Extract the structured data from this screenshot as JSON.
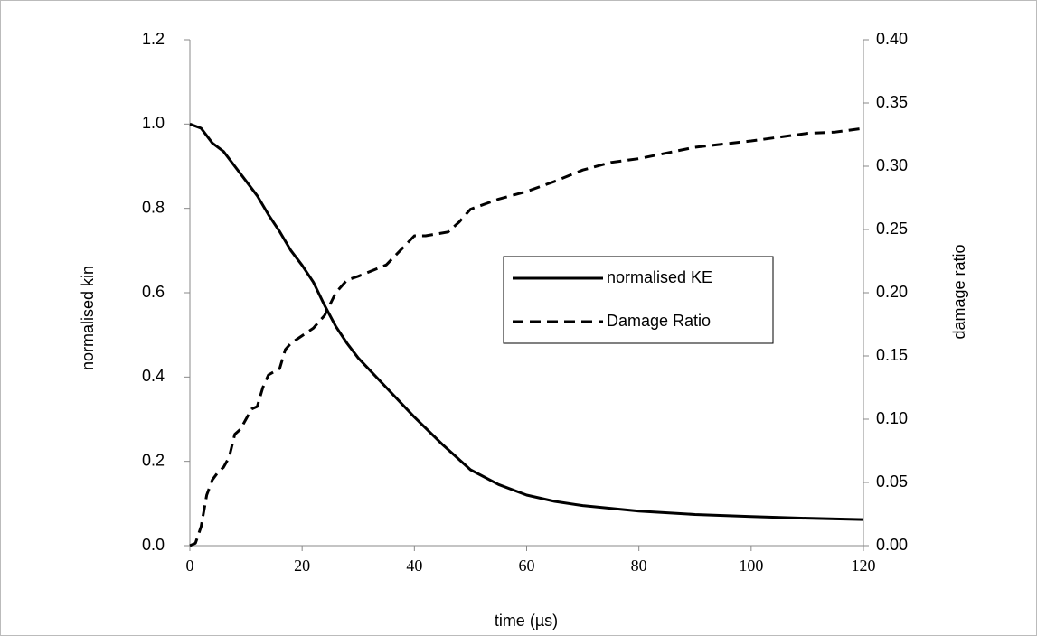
{
  "chart_data": {
    "type": "line",
    "xlabel": "time  (µs)",
    "ylabel": "normalised  kin",
    "y2label": "damage ratio",
    "xlim": [
      0,
      120
    ],
    "xticks": [
      0,
      20,
      40,
      60,
      80,
      100,
      120
    ],
    "ylim": [
      0,
      1.2
    ],
    "yticks": [
      {
        "value": 0,
        "label": "0.0"
      },
      0.2,
      0.4,
      0.6,
      0.8,
      {
        "value": 1,
        "label": "1.0"
      },
      1.2
    ],
    "y2lim": [
      0,
      0.4
    ],
    "y2ticks": [
      {
        "value": 0,
        "label": "0.00"
      },
      {
        "value": 0.05,
        "label": "0.05"
      },
      {
        "value": 0.1,
        "label": "0.10"
      },
      {
        "value": 0.15,
        "label": "0.15"
      },
      {
        "value": 0.2,
        "label": "0.20"
      },
      {
        "value": 0.25,
        "label": "0.25"
      },
      {
        "value": 0.3,
        "label": "0.30"
      },
      {
        "value": 0.35,
        "label": "0.35"
      },
      {
        "value": 0.4,
        "label": "0.40"
      }
    ],
    "series": [
      {
        "name": "normalised KE",
        "color": "#000000",
        "style": "solid",
        "x": [
          0,
          2,
          4,
          6,
          8,
          10,
          12,
          14,
          16,
          18,
          20,
          22,
          24,
          26,
          28,
          30,
          35,
          40,
          45,
          50,
          55,
          60,
          65,
          70,
          80,
          90,
          100,
          110,
          120
        ],
        "values": [
          1.0,
          0.99,
          0.955,
          0.935,
          0.9,
          0.865,
          0.83,
          0.785,
          0.745,
          0.7,
          0.665,
          0.625,
          0.57,
          0.52,
          0.48,
          0.445,
          0.375,
          0.305,
          0.24,
          0.18,
          0.145,
          0.12,
          0.105,
          0.095,
          0.082,
          0.074,
          0.069,
          0.065,
          0.062
        ]
      },
      {
        "name": "Damage Ratio",
        "color": "#000000",
        "style": "dashed",
        "axis": "y2",
        "x": [
          0,
          1,
          2,
          3,
          4,
          5,
          6,
          7,
          8,
          9,
          10,
          11,
          12,
          13,
          14,
          16,
          17,
          18,
          20,
          22,
          24,
          26,
          28,
          30,
          35,
          40,
          42,
          46,
          48,
          50,
          55,
          60,
          65,
          70,
          75,
          80,
          90,
          100,
          110,
          115,
          120
        ],
        "values": [
          0,
          0.002,
          0.015,
          0.04,
          0.052,
          0.058,
          0.062,
          0.07,
          0.088,
          0.092,
          0.1,
          0.108,
          0.11,
          0.125,
          0.135,
          0.14,
          0.155,
          0.16,
          0.166,
          0.172,
          0.182,
          0.2,
          0.21,
          0.213,
          0.222,
          0.245,
          0.245,
          0.248,
          0.256,
          0.266,
          0.274,
          0.28,
          0.288,
          0.297,
          0.303,
          0.306,
          0.315,
          0.32,
          0.326,
          0.327,
          0.33
        ]
      }
    ],
    "legend": "center-right"
  }
}
